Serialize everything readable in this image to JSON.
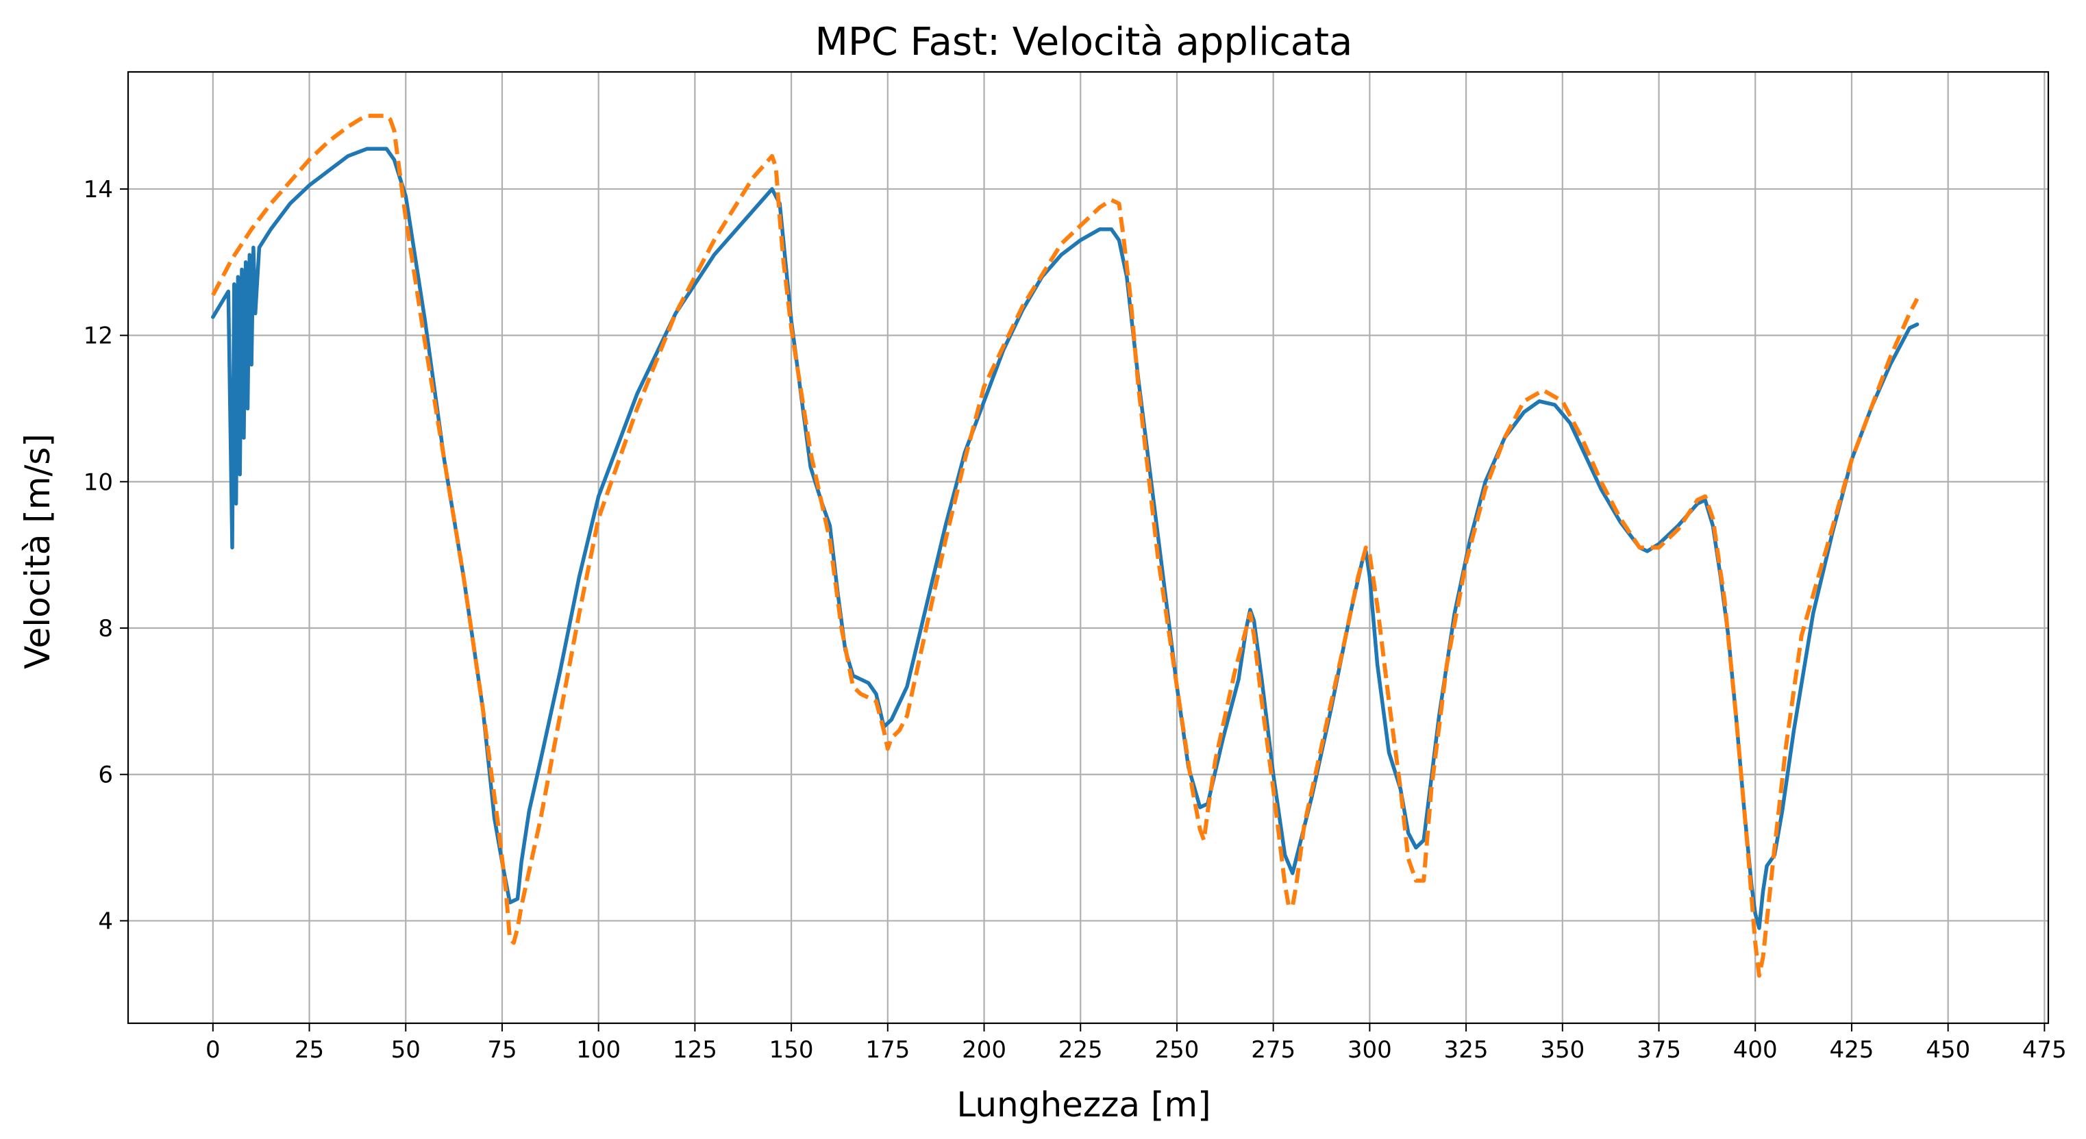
{
  "chart_data": {
    "type": "line",
    "title": "MPC Fast: Velocità applicata",
    "xlabel": "Lunghezza [m]",
    "ylabel": "Velocità [m/s]",
    "xlim": [
      -22,
      476
    ],
    "ylim": [
      2.6,
      15.6
    ],
    "xticks": [
      0,
      25,
      50,
      75,
      100,
      125,
      150,
      175,
      200,
      225,
      250,
      275,
      300,
      325,
      350,
      375,
      400,
      425,
      450,
      475
    ],
    "yticks": [
      4,
      6,
      8,
      10,
      12,
      14
    ],
    "grid": true,
    "legend": "none",
    "series": [
      {
        "style": "solid",
        "color": "#1f77b4",
        "x": [
          0,
          4,
          5,
          5.5,
          6,
          6.5,
          7,
          7.5,
          8,
          8.5,
          9,
          9.5,
          10,
          10.5,
          11,
          12,
          15,
          20,
          25,
          30,
          35,
          40,
          43,
          45,
          47,
          50,
          55,
          60,
          65,
          70,
          73,
          75,
          77,
          79,
          80,
          82,
          85,
          90,
          95,
          100,
          110,
          120,
          130,
          140,
          145,
          147,
          150,
          155,
          158,
          160,
          162,
          164,
          166,
          168,
          170,
          172,
          174,
          176,
          180,
          185,
          190,
          195,
          200,
          205,
          210,
          215,
          220,
          225,
          230,
          233,
          235,
          237,
          240,
          245,
          250,
          253,
          256,
          258,
          262,
          266,
          268,
          269,
          270,
          272,
          275,
          278,
          280,
          285,
          290,
          295,
          298,
          299,
          300,
          302,
          305,
          308,
          310,
          312,
          314,
          318,
          322,
          326,
          330,
          335,
          340,
          344,
          348,
          352,
          356,
          360,
          365,
          370,
          372,
          375,
          380,
          385,
          387,
          389,
          391,
          393,
          395,
          397,
          399,
          400,
          401,
          402,
          403,
          405,
          407,
          410,
          415,
          420,
          425,
          430,
          435,
          440,
          442
        ],
        "y": [
          12.25,
          12.6,
          9.1,
          12.7,
          9.7,
          12.8,
          10.1,
          12.9,
          10.6,
          13.0,
          11.0,
          13.1,
          11.6,
          13.2,
          12.3,
          13.2,
          13.45,
          13.8,
          14.05,
          14.25,
          14.45,
          14.55,
          14.55,
          14.55,
          14.4,
          13.9,
          12.2,
          10.3,
          8.7,
          6.9,
          5.4,
          4.8,
          4.25,
          4.3,
          4.8,
          5.5,
          6.2,
          7.4,
          8.7,
          9.8,
          11.2,
          12.3,
          13.1,
          13.7,
          14.0,
          13.8,
          12.2,
          10.2,
          9.7,
          9.4,
          8.5,
          7.7,
          7.35,
          7.3,
          7.25,
          7.1,
          6.65,
          6.75,
          7.2,
          8.3,
          9.4,
          10.4,
          11.1,
          11.8,
          12.35,
          12.8,
          13.1,
          13.3,
          13.45,
          13.45,
          13.3,
          12.8,
          11.4,
          9.3,
          7.2,
          6.1,
          5.55,
          5.6,
          6.5,
          7.3,
          8.0,
          8.25,
          8.1,
          7.3,
          6.0,
          4.9,
          4.65,
          5.7,
          6.9,
          8.2,
          8.9,
          9.05,
          8.7,
          7.5,
          6.3,
          5.8,
          5.2,
          5.0,
          5.1,
          6.8,
          8.2,
          9.2,
          10.0,
          10.6,
          10.95,
          11.1,
          11.05,
          10.8,
          10.35,
          9.9,
          9.45,
          9.1,
          9.05,
          9.15,
          9.4,
          9.7,
          9.75,
          9.4,
          8.7,
          7.9,
          6.8,
          5.6,
          4.5,
          4.1,
          3.9,
          4.4,
          4.75,
          4.9,
          5.5,
          6.6,
          8.2,
          9.3,
          10.3,
          11.0,
          11.6,
          12.1,
          12.15
        ]
      },
      {
        "style": "dashed",
        "color": "#ff7f0e",
        "x": [
          0,
          5,
          10,
          15,
          20,
          25,
          30,
          35,
          38,
          40,
          43,
          45,
          46,
          47,
          48,
          50,
          55,
          60,
          65,
          70,
          74,
          76,
          77,
          78,
          79,
          80,
          85,
          90,
          95,
          100,
          110,
          120,
          130,
          140,
          145,
          146,
          147,
          148,
          150,
          155,
          160,
          163,
          166,
          168,
          170,
          172,
          174,
          175,
          176,
          178,
          180,
          185,
          190,
          195,
          200,
          210,
          220,
          230,
          233,
          235,
          236,
          238,
          240,
          245,
          250,
          254,
          256,
          257,
          258,
          260,
          265,
          268,
          269,
          270,
          272,
          275,
          278,
          279,
          280,
          281,
          283,
          288,
          293,
          297,
          299,
          300,
          302,
          305,
          308,
          310,
          312,
          314,
          316,
          320,
          325,
          330,
          335,
          340,
          345,
          350,
          355,
          360,
          365,
          370,
          375,
          380,
          385,
          387,
          389,
          392,
          395,
          398,
          400,
          401,
          402,
          403,
          405,
          408,
          412,
          418,
          425,
          430,
          435,
          440,
          442
        ],
        "y": [
          12.55,
          13.05,
          13.45,
          13.8,
          14.1,
          14.4,
          14.65,
          14.85,
          14.95,
          15.0,
          15.0,
          15.0,
          14.95,
          14.8,
          14.4,
          13.6,
          11.9,
          10.3,
          8.7,
          6.9,
          5.3,
          4.4,
          3.75,
          3.7,
          3.9,
          4.2,
          5.4,
          6.8,
          8.2,
          9.5,
          11.0,
          12.3,
          13.3,
          14.15,
          14.45,
          14.3,
          13.6,
          13.0,
          12.1,
          10.4,
          9.2,
          8.0,
          7.2,
          7.1,
          7.05,
          7.0,
          6.6,
          6.35,
          6.5,
          6.6,
          6.8,
          8.0,
          9.2,
          10.3,
          11.3,
          12.4,
          13.25,
          13.75,
          13.85,
          13.8,
          13.4,
          12.5,
          11.3,
          9.0,
          7.2,
          5.8,
          5.25,
          5.1,
          5.5,
          6.2,
          7.4,
          8.0,
          8.2,
          7.9,
          7.0,
          5.8,
          4.5,
          4.2,
          4.2,
          4.5,
          5.3,
          6.5,
          7.7,
          8.7,
          9.1,
          9.0,
          8.3,
          7.0,
          5.8,
          4.85,
          4.55,
          4.55,
          5.8,
          7.5,
          8.9,
          9.9,
          10.6,
          11.1,
          11.25,
          11.1,
          10.6,
          10.0,
          9.5,
          9.1,
          9.1,
          9.35,
          9.75,
          9.8,
          9.5,
          8.4,
          6.8,
          5.0,
          3.7,
          3.25,
          3.5,
          4.0,
          5.0,
          6.4,
          7.9,
          9.0,
          10.3,
          11.0,
          11.7,
          12.3,
          12.5
        ]
      }
    ]
  }
}
